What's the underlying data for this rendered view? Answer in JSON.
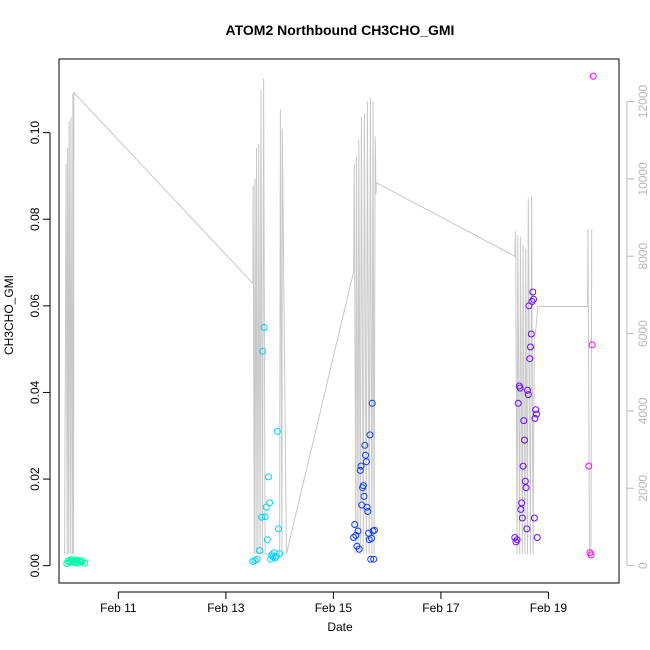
{
  "chart_data": {
    "type": "scatter",
    "title": "ATOM2 Northbound CH3CHO_GMI",
    "xlabel": "Date",
    "ylabel": "CH3CHO_GMI",
    "x_axis": {
      "type": "date",
      "range": [
        "2017-02-09T21:30",
        "2017-02-20T07:30"
      ],
      "ticks": [
        {
          "value": "2017-02-11",
          "label": "Feb 11"
        },
        {
          "value": "2017-02-13",
          "label": "Feb 13"
        },
        {
          "value": "2017-02-15",
          "label": "Feb 15"
        },
        {
          "value": "2017-02-17",
          "label": "Feb 17"
        },
        {
          "value": "2017-02-19",
          "label": "Feb 19"
        }
      ]
    },
    "y_axis": {
      "range": [
        -0.004,
        0.117
      ],
      "ticks": [
        {
          "value": 0.0,
          "label": "0.00"
        },
        {
          "value": 0.02,
          "label": "0.02"
        },
        {
          "value": 0.04,
          "label": "0.04"
        },
        {
          "value": 0.06,
          "label": "0.06"
        },
        {
          "value": 0.08,
          "label": "0.08"
        },
        {
          "value": 0.1,
          "label": "0.10"
        }
      ]
    },
    "y2_axis": {
      "range": [
        -450,
        13100
      ],
      "ticks": [
        {
          "value": 0,
          "label": "0"
        },
        {
          "value": 2000,
          "label": "2000"
        },
        {
          "value": 4000,
          "label": "4000"
        },
        {
          "value": 6000,
          "label": "6000"
        },
        {
          "value": 8000,
          "label": "8000"
        },
        {
          "value": 10000,
          "label": "10000"
        },
        {
          "value": 12000,
          "label": "12000"
        }
      ],
      "color": "#b8b8b8"
    },
    "grid": false,
    "points": [
      {
        "x": "2017-02-10T01:00",
        "y": 0.0005,
        "color": "#00ffaa"
      },
      {
        "x": "2017-02-10T01:30",
        "y": 0.001,
        "color": "#00ffaa"
      },
      {
        "x": "2017-02-10T02:00",
        "y": 0.0012,
        "color": "#00ffaa"
      },
      {
        "x": "2017-02-10T02:30",
        "y": 0.0008,
        "color": "#00ffaa"
      },
      {
        "x": "2017-02-10T03:00",
        "y": 0.0014,
        "color": "#00ffaa"
      },
      {
        "x": "2017-02-10T03:30",
        "y": 0.0009,
        "color": "#00ffaa"
      },
      {
        "x": "2017-02-10T04:00",
        "y": 0.0011,
        "color": "#00ffaa"
      },
      {
        "x": "2017-02-10T04:30",
        "y": 0.0007,
        "color": "#00ffaa"
      },
      {
        "x": "2017-02-10T05:00",
        "y": 0.0013,
        "color": "#00ffaa"
      },
      {
        "x": "2017-02-10T05:30",
        "y": 0.001,
        "color": "#00ffaa"
      },
      {
        "x": "2017-02-10T06:00",
        "y": 0.0006,
        "color": "#00ffaa"
      },
      {
        "x": "2017-02-10T06:30",
        "y": 0.0012,
        "color": "#00ffaa"
      },
      {
        "x": "2017-02-10T07:00",
        "y": 0.0009,
        "color": "#00ffaa"
      },
      {
        "x": "2017-02-10T07:30",
        "y": 0.0008,
        "color": "#00ffaa"
      },
      {
        "x": "2017-02-10T08:00",
        "y": 0.0011,
        "color": "#00ffaa"
      },
      {
        "x": "2017-02-10T09:00",
        "y": 0.0006,
        "color": "#00ffaa"
      },
      {
        "x": "2017-02-13T12:00",
        "y": 0.001,
        "color": "#00d2ff"
      },
      {
        "x": "2017-02-13T13:00",
        "y": 0.0012,
        "color": "#00d2ff"
      },
      {
        "x": "2017-02-13T14:00",
        "y": 0.0015,
        "color": "#00d2ff"
      },
      {
        "x": "2017-02-13T15:00",
        "y": 0.0035,
        "color": "#00d2ff"
      },
      {
        "x": "2017-02-13T16:00",
        "y": 0.0112,
        "color": "#00d2ff"
      },
      {
        "x": "2017-02-13T16:30",
        "y": 0.0495,
        "color": "#00d2ff"
      },
      {
        "x": "2017-02-13T17:00",
        "y": 0.055,
        "color": "#00d2ff"
      },
      {
        "x": "2017-02-13T17:30",
        "y": 0.0113,
        "color": "#00d2ff"
      },
      {
        "x": "2017-02-13T18:00",
        "y": 0.0135,
        "color": "#00d2ff"
      },
      {
        "x": "2017-02-13T18:30",
        "y": 0.006,
        "color": "#00d2ff"
      },
      {
        "x": "2017-02-13T19:00",
        "y": 0.0205,
        "color": "#00d2ff"
      },
      {
        "x": "2017-02-13T19:30",
        "y": 0.0145,
        "color": "#00d2ff"
      },
      {
        "x": "2017-02-13T20:00",
        "y": 0.0015,
        "color": "#00d2ff"
      },
      {
        "x": "2017-02-13T20:30",
        "y": 0.0025,
        "color": "#00d2ff"
      },
      {
        "x": "2017-02-13T21:00",
        "y": 0.002,
        "color": "#00d2ff"
      },
      {
        "x": "2017-02-13T21:30",
        "y": 0.003,
        "color": "#00d2ff"
      },
      {
        "x": "2017-02-13T22:00",
        "y": 0.0018,
        "color": "#00d2ff"
      },
      {
        "x": "2017-02-13T22:30",
        "y": 0.0022,
        "color": "#00d2ff"
      },
      {
        "x": "2017-02-13T23:00",
        "y": 0.031,
        "color": "#00d2ff"
      },
      {
        "x": "2017-02-13T23:30",
        "y": 0.0085,
        "color": "#00d2ff"
      },
      {
        "x": "2017-02-14T00:00",
        "y": 0.0028,
        "color": "#00d2ff"
      },
      {
        "x": "2017-02-15T09:00",
        "y": 0.0065,
        "color": "#0a3cff"
      },
      {
        "x": "2017-02-15T09:30",
        "y": 0.0095,
        "color": "#0a3cff"
      },
      {
        "x": "2017-02-15T10:00",
        "y": 0.007,
        "color": "#0a3cff"
      },
      {
        "x": "2017-02-15T10:30",
        "y": 0.0045,
        "color": "#0a3cff"
      },
      {
        "x": "2017-02-15T11:00",
        "y": 0.008,
        "color": "#0a3cff"
      },
      {
        "x": "2017-02-15T11:30",
        "y": 0.0038,
        "color": "#0a3cff"
      },
      {
        "x": "2017-02-15T12:00",
        "y": 0.022,
        "color": "#0a3cff"
      },
      {
        "x": "2017-02-15T12:20",
        "y": 0.023,
        "color": "#0a3cff"
      },
      {
        "x": "2017-02-15T12:40",
        "y": 0.014,
        "color": "#0a3cff"
      },
      {
        "x": "2017-02-15T13:00",
        "y": 0.018,
        "color": "#0a3cff"
      },
      {
        "x": "2017-02-15T13:20",
        "y": 0.0185,
        "color": "#0a3cff"
      },
      {
        "x": "2017-02-15T13:40",
        "y": 0.016,
        "color": "#0a3cff"
      },
      {
        "x": "2017-02-15T14:00",
        "y": 0.0278,
        "color": "#0a3cff"
      },
      {
        "x": "2017-02-15T14:20",
        "y": 0.0255,
        "color": "#0a3cff"
      },
      {
        "x": "2017-02-15T14:40",
        "y": 0.024,
        "color": "#0a3cff"
      },
      {
        "x": "2017-02-15T15:00",
        "y": 0.0135,
        "color": "#0a3cff"
      },
      {
        "x": "2017-02-15T15:20",
        "y": 0.0125,
        "color": "#0a3cff"
      },
      {
        "x": "2017-02-15T15:40",
        "y": 0.0075,
        "color": "#0a3cff"
      },
      {
        "x": "2017-02-15T16:00",
        "y": 0.006,
        "color": "#0a3cff"
      },
      {
        "x": "2017-02-15T16:20",
        "y": 0.0302,
        "color": "#0a3cff"
      },
      {
        "x": "2017-02-15T16:40",
        "y": 0.0015,
        "color": "#0a3cff"
      },
      {
        "x": "2017-02-15T17:00",
        "y": 0.0063,
        "color": "#0a3cff"
      },
      {
        "x": "2017-02-15T17:20",
        "y": 0.0375,
        "color": "#0a3cff"
      },
      {
        "x": "2017-02-15T17:40",
        "y": 0.008,
        "color": "#0a3cff"
      },
      {
        "x": "2017-02-15T18:00",
        "y": 0.0015,
        "color": "#0a3cff"
      },
      {
        "x": "2017-02-15T18:20",
        "y": 0.0082,
        "color": "#0a3cff"
      },
      {
        "x": "2017-02-18T09:00",
        "y": 0.0065,
        "color": "#6a0aff"
      },
      {
        "x": "2017-02-18T09:30",
        "y": 0.0055,
        "color": "#6a0aff"
      },
      {
        "x": "2017-02-18T10:00",
        "y": 0.006,
        "color": "#6a0aff"
      },
      {
        "x": "2017-02-18T10:30",
        "y": 0.0375,
        "color": "#6a0aff"
      },
      {
        "x": "2017-02-18T11:00",
        "y": 0.0415,
        "color": "#6a0aff"
      },
      {
        "x": "2017-02-18T11:20",
        "y": 0.041,
        "color": "#6a0aff"
      },
      {
        "x": "2017-02-18T11:40",
        "y": 0.013,
        "color": "#6a0aff"
      },
      {
        "x": "2017-02-18T12:00",
        "y": 0.0145,
        "color": "#6a0aff"
      },
      {
        "x": "2017-02-18T12:20",
        "y": 0.011,
        "color": "#6a0aff"
      },
      {
        "x": "2017-02-18T12:40",
        "y": 0.023,
        "color": "#6a0aff"
      },
      {
        "x": "2017-02-18T13:00",
        "y": 0.0335,
        "color": "#6a0aff"
      },
      {
        "x": "2017-02-18T13:20",
        "y": 0.029,
        "color": "#6a0aff"
      },
      {
        "x": "2017-02-18T13:40",
        "y": 0.0195,
        "color": "#6a0aff"
      },
      {
        "x": "2017-02-18T14:00",
        "y": 0.018,
        "color": "#6a0aff"
      },
      {
        "x": "2017-02-18T14:20",
        "y": 0.0085,
        "color": "#6a0aff"
      },
      {
        "x": "2017-02-18T14:40",
        "y": 0.0405,
        "color": "#6a0aff"
      },
      {
        "x": "2017-02-18T15:00",
        "y": 0.0395,
        "color": "#6a0aff"
      },
      {
        "x": "2017-02-18T15:20",
        "y": 0.06,
        "color": "#6a0aff"
      },
      {
        "x": "2017-02-18T15:40",
        "y": 0.0478,
        "color": "#6a0aff"
      },
      {
        "x": "2017-02-18T16:00",
        "y": 0.0505,
        "color": "#6a0aff"
      },
      {
        "x": "2017-02-18T16:20",
        "y": 0.0535,
        "color": "#6a0aff"
      },
      {
        "x": "2017-02-18T16:40",
        "y": 0.061,
        "color": "#6a0aff"
      },
      {
        "x": "2017-02-18T17:00",
        "y": 0.0632,
        "color": "#6a0aff"
      },
      {
        "x": "2017-02-18T17:20",
        "y": 0.0615,
        "color": "#6a0aff"
      },
      {
        "x": "2017-02-18T17:40",
        "y": 0.011,
        "color": "#6a0aff"
      },
      {
        "x": "2017-02-18T18:00",
        "y": 0.034,
        "color": "#6a0aff"
      },
      {
        "x": "2017-02-18T18:20",
        "y": 0.036,
        "color": "#6a0aff"
      },
      {
        "x": "2017-02-18T18:40",
        "y": 0.035,
        "color": "#6a0aff"
      },
      {
        "x": "2017-02-18T19:00",
        "y": 0.0065,
        "color": "#6a0aff"
      },
      {
        "x": "2017-02-19T18:00",
        "y": 0.023,
        "color": "#ff00ff"
      },
      {
        "x": "2017-02-19T18:30",
        "y": 0.003,
        "color": "#ff00ff"
      },
      {
        "x": "2017-02-19T19:00",
        "y": 0.0025,
        "color": "#ff00ff"
      },
      {
        "x": "2017-02-19T19:30",
        "y": 0.051,
        "color": "#ff00ff"
      },
      {
        "x": "2017-02-19T20:00",
        "y": 0.113,
        "color": "#ff00ff"
      }
    ],
    "altitude_series": {
      "axis": "y2",
      "color": "#c8c8c8",
      "x": [
        "2017-02-10T00:00",
        "2017-02-10T00:40",
        "2017-02-10T01:10",
        "2017-02-10T01:20",
        "2017-02-10T01:50",
        "2017-02-10T02:00",
        "2017-02-10T02:40",
        "2017-02-10T02:50",
        "2017-02-10T03:30",
        "2017-02-10T03:40",
        "2017-02-10T04:00",
        "2017-02-10T04:10",
        "2017-02-13T12:00",
        "2017-02-13T12:10",
        "2017-02-13T12:40",
        "2017-02-13T13:00",
        "2017-02-13T13:30",
        "2017-02-13T13:40",
        "2017-02-13T14:20",
        "2017-02-13T14:40",
        "2017-02-13T15:20",
        "2017-02-13T15:40",
        "2017-02-13T16:20",
        "2017-02-13T16:50",
        "2017-02-13T17:30",
        "2017-02-13T18:00",
        "2017-02-13T19:00",
        "2017-02-13T20:00",
        "2017-02-13T21:00",
        "2017-02-13T22:00",
        "2017-02-13T23:00",
        "2017-02-13T23:30",
        "2017-02-14T00:00",
        "2017-02-14T00:20",
        "2017-02-14T01:00",
        "2017-02-14T01:10",
        "2017-02-14T03:00",
        "2017-02-15T09:00",
        "2017-02-15T09:20",
        "2017-02-15T10:00",
        "2017-02-15T10:20",
        "2017-02-15T11:00",
        "2017-02-15T11:20",
        "2017-02-15T12:00",
        "2017-02-15T12:30",
        "2017-02-15T13:20",
        "2017-02-15T13:50",
        "2017-02-15T14:40",
        "2017-02-15T15:10",
        "2017-02-15T16:00",
        "2017-02-15T16:30",
        "2017-02-15T17:10",
        "2017-02-15T17:40",
        "2017-02-15T18:10",
        "2017-02-15T18:40",
        "2017-02-15T19:00",
        "2017-02-15T19:10",
        "2017-02-18T09:00",
        "2017-02-18T09:20",
        "2017-02-18T10:00",
        "2017-02-18T10:20",
        "2017-02-18T11:10",
        "2017-02-18T11:30",
        "2017-02-18T12:20",
        "2017-02-18T12:40",
        "2017-02-18T13:30",
        "2017-02-18T13:50",
        "2017-02-18T14:40",
        "2017-02-18T15:00",
        "2017-02-18T16:00",
        "2017-02-18T16:30",
        "2017-02-18T17:10",
        "2017-02-18T17:40",
        "2017-02-18T18:10",
        "2017-02-18T18:40",
        "2017-02-18T19:00",
        "2017-02-18T19:10",
        "2017-02-19T17:30",
        "2017-02-19T17:40",
        "2017-02-19T18:20",
        "2017-02-19T19:00",
        "2017-02-19T19:20"
      ],
      "y": [
        300,
        10400,
        300,
        10800,
        300,
        11500,
        300,
        11600,
        300,
        12200,
        300,
        12230,
        7300,
        9850,
        300,
        10000,
        300,
        10800,
        300,
        10900,
        300,
        12300,
        300,
        12600,
        300,
        300,
        300,
        300,
        300,
        300,
        300,
        300,
        300,
        11800,
        300,
        11300,
        300,
        7600,
        10400,
        300,
        10600,
        300,
        11000,
        300,
        11600,
        300,
        11700,
        300,
        12000,
        300,
        12100,
        300,
        12000,
        300,
        11100,
        9600,
        9900,
        8000,
        8650,
        300,
        8550,
        300,
        8500,
        300,
        8300,
        300,
        8200,
        300,
        9500,
        300,
        9550,
        300,
        5850,
        6000,
        6300,
        6500,
        6700,
        6700,
        8700,
        300,
        300,
        8700
      ]
    }
  }
}
